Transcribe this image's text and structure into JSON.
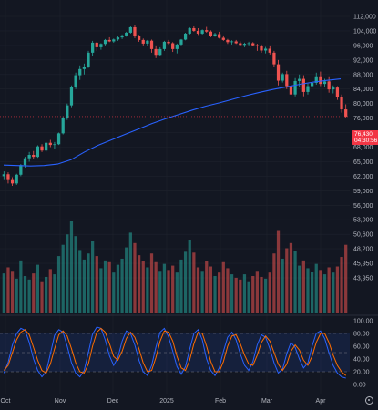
{
  "chart_data": {
    "type": "candlestick",
    "colors": {
      "up": "#26a69a",
      "down": "#ef5350",
      "ma": "#2962ff",
      "stoch_k": "#2962ff",
      "stoch_d": "#ff6d00",
      "last_price": "#f23645",
      "background": "#131722",
      "grid": "#1e222d"
    },
    "price_axis": {
      "ticks": [
        "112,000",
        "104,000",
        "96,000",
        "92,000",
        "88,000",
        "84,000",
        "80,000",
        "76,000",
        "72,000",
        "68,000",
        "65,000",
        "62,000",
        "59,000",
        "56,000",
        "53,000",
        "50,600",
        "48,200",
        "45,950",
        "43,950"
      ]
    },
    "volume_axis_labels": [
      "56,000",
      "53,000",
      "50,600",
      "48,200",
      "45,950",
      "43,950"
    ],
    "stoch_axis": {
      "ticks": [
        "100.00",
        "80.00",
        "60.00",
        "40.00",
        "20.00",
        "0.00"
      ],
      "range": [
        0,
        100
      ],
      "band": [
        20,
        80
      ]
    },
    "time_axis": {
      "ticks": [
        "Oct",
        "Nov",
        "Dec",
        "2025",
        "Feb",
        "Mar",
        "Apr"
      ]
    },
    "last_price": {
      "value": "76,430",
      "countdown": "04:30:56",
      "numeric": 76430
    },
    "moving_average": {
      "values": [
        64300,
        64200,
        64100,
        64200,
        64500,
        65400,
        67000,
        68500,
        70000,
        71500,
        73000,
        74500,
        75800,
        77000,
        78200,
        79300,
        80200,
        81200,
        82200,
        83100,
        83900,
        84600,
        85300,
        85900,
        86400,
        86800
      ]
    },
    "candles": [
      [
        62000,
        63000,
        61200,
        62400
      ],
      [
        62400,
        62800,
        60500,
        61200
      ],
      [
        61200,
        61800,
        60000,
        60500
      ],
      [
        60500,
        62500,
        60200,
        62300
      ],
      [
        62300,
        64500,
        62000,
        64300
      ],
      [
        64300,
        66000,
        63800,
        65700
      ],
      [
        65700,
        67000,
        65000,
        66400
      ],
      [
        66400,
        67200,
        65600,
        66000
      ],
      [
        66000,
        68500,
        65800,
        68200
      ],
      [
        68200,
        68800,
        67000,
        67300
      ],
      [
        67300,
        69500,
        67000,
        69200
      ],
      [
        69200,
        70000,
        68000,
        68600
      ],
      [
        68600,
        69400,
        67600,
        68800
      ],
      [
        68800,
        72000,
        68600,
        71800
      ],
      [
        71800,
        76500,
        71500,
        76000
      ],
      [
        76000,
        80000,
        75500,
        79500
      ],
      [
        79500,
        85000,
        79000,
        84500
      ],
      [
        84500,
        88500,
        84000,
        87800
      ],
      [
        87800,
        90500,
        86500,
        89500
      ],
      [
        89500,
        91000,
        88000,
        90200
      ],
      [
        90200,
        94500,
        89800,
        94000
      ],
      [
        94000,
        98500,
        93200,
        97500
      ],
      [
        97500,
        98000,
        94500,
        95500
      ],
      [
        95500,
        97200,
        94800,
        96800
      ],
      [
        96800,
        99500,
        96000,
        99000
      ],
      [
        99000,
        100500,
        97800,
        98200
      ],
      [
        98200,
        99800,
        97500,
        99300
      ],
      [
        99300,
        101000,
        98500,
        100400
      ],
      [
        100400,
        102000,
        99500,
        101500
      ],
      [
        101500,
        103500,
        100800,
        103000
      ],
      [
        103000,
        106500,
        102500,
        106000
      ],
      [
        106000,
        107500,
        100000,
        101000
      ],
      [
        101000,
        101800,
        98000,
        99000
      ],
      [
        99000,
        99800,
        96000,
        97000
      ],
      [
        97000,
        99000,
        95800,
        98600
      ],
      [
        98600,
        99200,
        94000,
        95000
      ],
      [
        95000,
        96000,
        92500,
        93400
      ],
      [
        93400,
        95500,
        93000,
        95000
      ],
      [
        95000,
        98500,
        94500,
        98000
      ],
      [
        98000,
        99000,
        96500,
        97200
      ],
      [
        97200,
        97800,
        94200,
        95000
      ],
      [
        95000,
        97000,
        93800,
        96500
      ],
      [
        96500,
        99500,
        96000,
        99200
      ],
      [
        99200,
        103000,
        98800,
        102500
      ],
      [
        102500,
        106000,
        102000,
        105500
      ],
      [
        105500,
        107000,
        103500,
        104000
      ],
      [
        104000,
        105500,
        101800,
        102500
      ],
      [
        102500,
        104800,
        102000,
        104400
      ],
      [
        104400,
        106200,
        103000,
        103600
      ],
      [
        103600,
        104300,
        100500,
        101200
      ],
      [
        101200,
        103000,
        100800,
        102200
      ],
      [
        102200,
        103500,
        99800,
        100200
      ],
      [
        100200,
        101500,
        98500,
        99000
      ],
      [
        99000,
        99600,
        96800,
        97800
      ],
      [
        97800,
        98800,
        96500,
        98200
      ],
      [
        98200,
        99000,
        96800,
        97200
      ],
      [
        97200,
        98200,
        95800,
        96300
      ],
      [
        96300,
        97500,
        95500,
        96900
      ],
      [
        96900,
        98000,
        96000,
        97200
      ],
      [
        97200,
        97800,
        95800,
        96100
      ],
      [
        96100,
        96900,
        94500,
        95800
      ],
      [
        95800,
        96500,
        94000,
        94600
      ],
      [
        94600,
        95600,
        93800,
        95100
      ],
      [
        95100,
        96000,
        93500,
        94000
      ],
      [
        94000,
        94500,
        90000,
        90800
      ],
      [
        90800,
        92000,
        85000,
        86300
      ],
      [
        86300,
        88500,
        85800,
        88100
      ],
      [
        88100,
        89000,
        84000,
        84800
      ],
      [
        84800,
        86000,
        80000,
        82500
      ],
      [
        82500,
        87000,
        82000,
        86200
      ],
      [
        86200,
        88000,
        84500,
        86800
      ],
      [
        86800,
        87800,
        82000,
        83200
      ],
      [
        83200,
        85500,
        82500,
        84800
      ],
      [
        84800,
        86500,
        84000,
        85700
      ],
      [
        85700,
        88500,
        85200,
        87500
      ],
      [
        87500,
        88800,
        84800,
        85400
      ],
      [
        85400,
        86800,
        84500,
        86100
      ],
      [
        86100,
        87500,
        83000,
        83900
      ],
      [
        83900,
        85000,
        82800,
        84400
      ],
      [
        84400,
        84800,
        81000,
        81800
      ],
      [
        81800,
        82500,
        77500,
        78400
      ],
      [
        78400,
        79800,
        76000,
        76430
      ]
    ],
    "volumes": [
      4.5,
      5.2,
      4.8,
      3.9,
      6.0,
      4.2,
      3.8,
      4.5,
      5.5,
      3.6,
      4.1,
      5.0,
      4.4,
      6.5,
      7.8,
      9.0,
      10.5,
      8.8,
      7.2,
      6.1,
      6.8,
      8.2,
      6.5,
      5.1,
      6.0,
      5.8,
      4.6,
      5.5,
      6.2,
      7.5,
      9.2,
      8.0,
      6.6,
      5.9,
      5.2,
      6.8,
      5.8,
      4.8,
      5.6,
      4.9,
      5.4,
      4.6,
      6.1,
      7.0,
      8.4,
      6.9,
      5.2,
      4.8,
      5.9,
      5.3,
      4.2,
      4.6,
      5.8,
      5.1,
      4.4,
      4.0,
      3.8,
      4.4,
      3.6,
      4.2,
      4.8,
      4.1,
      3.9,
      4.6,
      6.8,
      9.5,
      6.2,
      7.4,
      8.0,
      7.1,
      5.4,
      6.0,
      5.1,
      4.7,
      5.6,
      4.9,
      4.4,
      5.2,
      4.6,
      5.3,
      6.4,
      7.8
    ],
    "stoch": {
      "k": [
        18,
        35,
        62,
        80,
        88,
        85,
        66,
        40,
        22,
        12,
        20,
        48,
        77,
        86,
        82,
        60,
        34,
        18,
        12,
        22,
        50,
        79,
        90,
        88,
        70,
        45,
        30,
        42,
        68,
        84,
        80,
        62,
        38,
        20,
        14,
        30,
        58,
        82,
        88,
        75,
        52,
        28,
        16,
        28,
        55,
        80,
        86,
        70,
        40,
        22,
        14,
        26,
        52,
        74,
        82,
        70,
        48,
        30,
        22,
        36,
        62,
        78,
        74,
        56,
        34,
        18,
        24,
        48,
        66,
        58,
        40,
        26,
        34,
        60,
        80,
        84,
        72,
        50,
        30,
        18,
        12,
        10
      ],
      "d": [
        22,
        30,
        50,
        70,
        82,
        86,
        78,
        58,
        38,
        22,
        18,
        32,
        56,
        78,
        84,
        76,
        56,
        34,
        20,
        18,
        32,
        60,
        82,
        88,
        82,
        64,
        44,
        38,
        52,
        72,
        82,
        74,
        56,
        34,
        20,
        22,
        42,
        68,
        84,
        82,
        68,
        44,
        26,
        22,
        38,
        64,
        82,
        80,
        60,
        36,
        20,
        20,
        36,
        60,
        76,
        78,
        64,
        46,
        32,
        30,
        46,
        66,
        76,
        68,
        50,
        32,
        22,
        32,
        52,
        62,
        54,
        38,
        30,
        44,
        66,
        80,
        80,
        66,
        46,
        30,
        20,
        14
      ]
    }
  }
}
